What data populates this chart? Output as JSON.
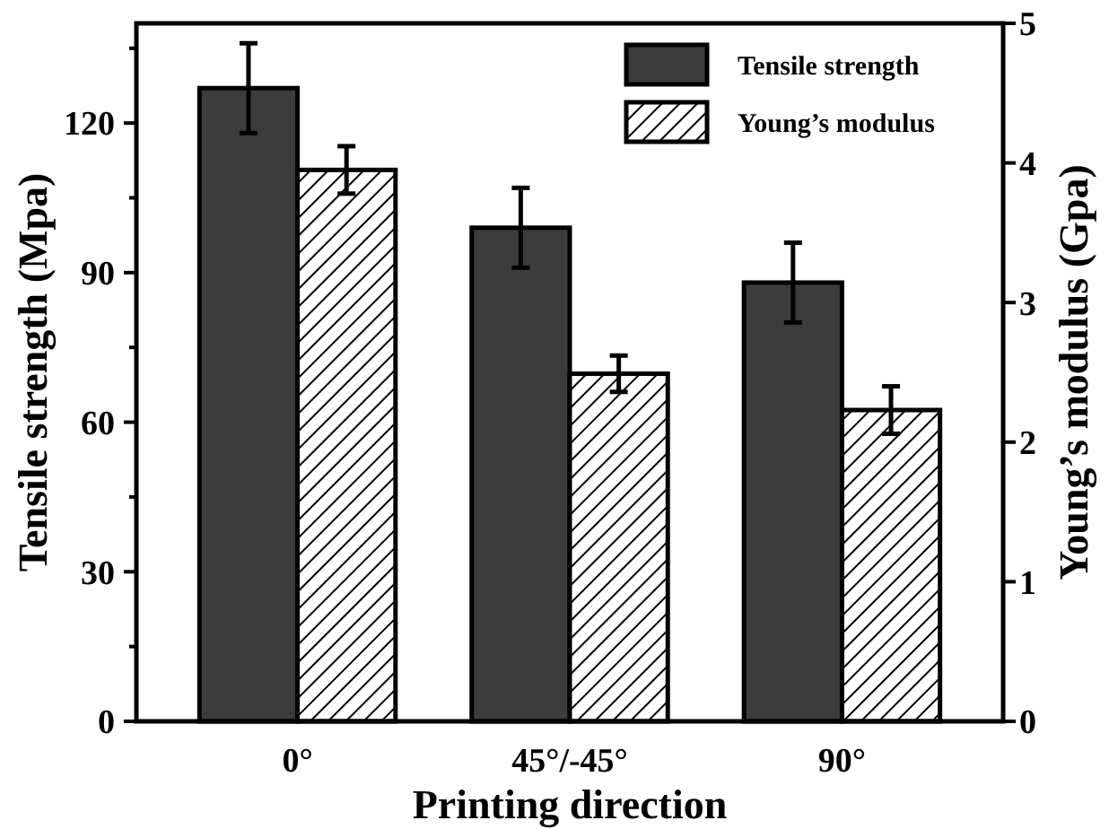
{
  "chart_data": {
    "type": "bar",
    "xlabel": "Printing direction",
    "ylabel": "Tensile strength (Mpa)",
    "y2label": "Young’s modulus (Gpa)",
    "categories": [
      "0°",
      "45°/-45°",
      "90°"
    ],
    "series": [
      {
        "name": "Tensile strength",
        "color": "#3c3c3c",
        "values": [
          127,
          99,
          88
        ],
        "errors": [
          9,
          8,
          8
        ]
      },
      {
        "name": "Young’s modulus",
        "color": "#000000",
        "axis": "y2",
        "values": [
          3.95,
          2.49,
          2.23
        ],
        "errors": [
          0.17,
          0.13,
          0.17
        ]
      }
    ],
    "ylim": [
      0,
      140
    ],
    "yticks": [
      0,
      {
        "value": 15,
        "label": null
      },
      30,
      {
        "value": 45,
        "label": null
      },
      60,
      {
        "value": 75,
        "label": null
      },
      90,
      {
        "value": 105,
        "label": null
      },
      120,
      {
        "value": 135,
        "label": null
      }
    ],
    "y2lim": [
      0,
      5
    ],
    "y2ticks": [
      0,
      1,
      2,
      3,
      4,
      5
    ],
    "legend": "top right",
    "grid": false
  }
}
